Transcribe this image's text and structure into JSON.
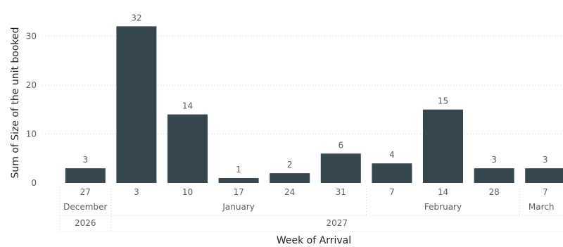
{
  "chart_data": {
    "type": "bar",
    "xlabel": "Week of Arrival",
    "ylabel": "Sum of Size of the unit booked",
    "ylim": [
      0,
      35
    ],
    "yticks": [
      0,
      10,
      20,
      30
    ],
    "grid": true,
    "bar_color": "#37474f",
    "categories": [
      "27",
      "3",
      "10",
      "17",
      "24",
      "31",
      "7",
      "14",
      "28",
      "7"
    ],
    "values": [
      3,
      32,
      14,
      1,
      2,
      6,
      4,
      15,
      3,
      3
    ],
    "months": [
      {
        "label": "December",
        "span": [
          0,
          0
        ]
      },
      {
        "label": "January",
        "span": [
          1,
          5
        ]
      },
      {
        "label": "February",
        "span": [
          6,
          8
        ]
      },
      {
        "label": "March",
        "span": [
          9,
          9
        ]
      }
    ],
    "years": [
      {
        "label": "2026",
        "span": [
          0,
          0
        ]
      },
      {
        "label": "2027",
        "span": [
          1,
          9
        ]
      }
    ]
  }
}
